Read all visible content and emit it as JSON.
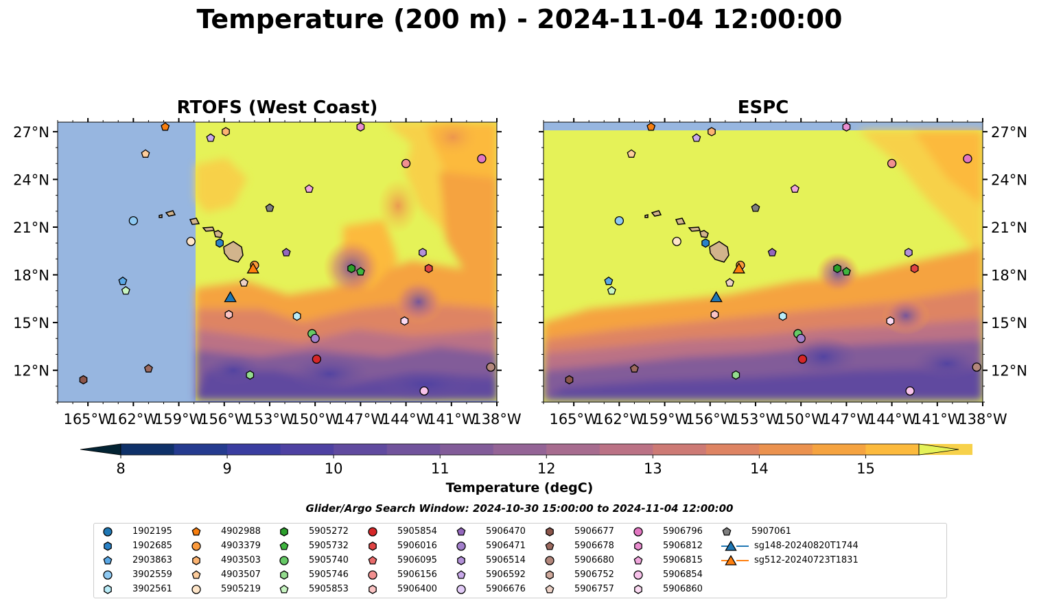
{
  "figure": {
    "title": "Temperature (200 m) - 2024-11-04 12:00:00",
    "left_panel_title": "RTOFS (West Coast)",
    "right_panel_title": "ESPC",
    "search_window": "Glider/Argo Search Window: 2024-10-30 15:00:00 to 2024-11-04 12:00:00"
  },
  "map": {
    "lon_range": [
      -167,
      -138
    ],
    "lat_range": [
      10,
      27.6
    ],
    "lon_ticks": [
      {
        "lon": -165,
        "label": "165°W"
      },
      {
        "lon": -162,
        "label": "162°W"
      },
      {
        "lon": -159,
        "label": "159°W"
      },
      {
        "lon": -156,
        "label": "156°W"
      },
      {
        "lon": -153,
        "label": "153°W"
      },
      {
        "lon": -150,
        "label": "150°W"
      },
      {
        "lon": -147,
        "label": "147°W"
      },
      {
        "lon": -144,
        "label": "144°W"
      },
      {
        "lon": -141,
        "label": "141°W"
      },
      {
        "lon": -138,
        "label": "138°W"
      }
    ],
    "lat_ticks": [
      {
        "lat": 27,
        "label": "27°N"
      },
      {
        "lat": 24,
        "label": "24°N"
      },
      {
        "lat": 21,
        "label": "21°N"
      },
      {
        "lat": 18,
        "label": "18°N"
      },
      {
        "lat": 15,
        "label": "15°N"
      },
      {
        "lat": 12,
        "label": "12°N"
      }
    ],
    "rtofs_domain_west_lon": -157.9,
    "rtofs_domain_south_lat": 10.1,
    "no_data_color": "#97b6e0"
  },
  "colorbar": {
    "label": "Temperature (degC)",
    "min": 7.5,
    "max": 15.5,
    "step": 0.5,
    "ticks": [
      8,
      9,
      10,
      11,
      12,
      13,
      14,
      15
    ],
    "colors": [
      "#032333",
      "#0f3169",
      "#253b8f",
      "#3a3da0",
      "#4e41a2",
      "#604a9f",
      "#71539c",
      "#825c99",
      "#946496",
      "#a76c8f",
      "#bb7285",
      "#cd7a75",
      "#de8463",
      "#eb924f",
      "#f5a340",
      "#fcba3d",
      "#f7d14a",
      "#e5f258"
    ]
  },
  "profiles": [
    {
      "id": "1902195",
      "marker": "circle",
      "color": "#1f77b4",
      "lon": null,
      "lat": null
    },
    {
      "id": "1902685",
      "marker": "hexagon",
      "color": "#2a82c7",
      "lon": -156.3,
      "lat": 20.0
    },
    {
      "id": "2903863",
      "marker": "pentagon",
      "color": "#5aa8e6",
      "lon": -162.7,
      "lat": 17.6
    },
    {
      "id": "3902559",
      "marker": "circle",
      "color": "#8ec9f2",
      "lon": -162.0,
      "lat": 21.4
    },
    {
      "id": "3902561",
      "marker": "hexagon",
      "color": "#b9ecf8",
      "lon": -151.2,
      "lat": 15.4
    },
    {
      "id": "4902988",
      "marker": "pentagon",
      "color": "#f97f0f",
      "lon": -159.9,
      "lat": 27.3
    },
    {
      "id": "4903379",
      "marker": "circle",
      "color": "#fb9a3c",
      "lon": -154.0,
      "lat": 18.6
    },
    {
      "id": "4903503",
      "marker": "hexagon",
      "color": "#fcb472",
      "lon": -155.9,
      "lat": 27.0
    },
    {
      "id": "4903507",
      "marker": "pentagon",
      "color": "#fdcd9c",
      "lon": -161.2,
      "lat": 25.6
    },
    {
      "id": "5905219",
      "marker": "circle",
      "color": "#fee5c8",
      "lon": -158.2,
      "lat": 20.1
    },
    {
      "id": "5905272",
      "marker": "hexagon",
      "color": "#2ca02c",
      "lon": -147.6,
      "lat": 18.4
    },
    {
      "id": "5905732",
      "marker": "pentagon",
      "color": "#3fb53f",
      "lon": -147.0,
      "lat": 18.2
    },
    {
      "id": "5905740",
      "marker": "circle",
      "color": "#66c966",
      "lon": -150.2,
      "lat": 14.3
    },
    {
      "id": "5905746",
      "marker": "hexagon",
      "color": "#94dc8e",
      "lon": -154.3,
      "lat": 11.7
    },
    {
      "id": "5905853",
      "marker": "pentagon",
      "color": "#c8f5c2",
      "lon": -162.5,
      "lat": 17.0
    },
    {
      "id": "5905854",
      "marker": "circle",
      "color": "#d62728",
      "lon": -149.9,
      "lat": 12.7
    },
    {
      "id": "5906016",
      "marker": "hexagon",
      "color": "#e04444",
      "lon": -142.5,
      "lat": 18.4
    },
    {
      "id": "5906095",
      "marker": "pentagon",
      "color": "#e86a6a",
      "lon": null,
      "lat": null
    },
    {
      "id": "5906156",
      "marker": "circle",
      "color": "#f29090",
      "lon": -144.0,
      "lat": 25.0
    },
    {
      "id": "5906400",
      "marker": "hexagon",
      "color": "#fbc4c4",
      "lon": -155.7,
      "lat": 15.5
    },
    {
      "id": "5906470",
      "marker": "pentagon",
      "color": "#9467bd",
      "lon": -151.9,
      "lat": 19.4
    },
    {
      "id": "5906471",
      "marker": "circle",
      "color": "#a27fcb",
      "lon": -150.0,
      "lat": 14.0
    },
    {
      "id": "5906514",
      "marker": "hexagon",
      "color": "#b391d8",
      "lon": -142.9,
      "lat": 19.4
    },
    {
      "id": "5906592",
      "marker": "pentagon",
      "color": "#c9a9ea",
      "lon": -156.9,
      "lat": 26.6
    },
    {
      "id": "5906676",
      "marker": "circle",
      "color": "#e2cbf7",
      "lon": null,
      "lat": null
    },
    {
      "id": "5906677",
      "marker": "hexagon",
      "color": "#8c564b",
      "lon": -165.3,
      "lat": 11.4
    },
    {
      "id": "5906678",
      "marker": "pentagon",
      "color": "#9c6a5f",
      "lon": -161.0,
      "lat": 12.1
    },
    {
      "id": "5906680",
      "marker": "circle",
      "color": "#b3877c",
      "lon": -138.4,
      "lat": 12.2
    },
    {
      "id": "5906752",
      "marker": "hexagon",
      "color": "#d0aa9d",
      "lon": null,
      "lat": null
    },
    {
      "id": "5906757",
      "marker": "pentagon",
      "color": "#ecd1c6",
      "lon": -154.7,
      "lat": 17.5
    },
    {
      "id": "5906796",
      "marker": "circle",
      "color": "#e377c2",
      "lon": -139.0,
      "lat": 25.3
    },
    {
      "id": "5906812",
      "marker": "hexagon",
      "color": "#ea8ed0",
      "lon": -147.0,
      "lat": 27.3
    },
    {
      "id": "5906815",
      "marker": "pentagon",
      "color": "#f0a6dc",
      "lon": -150.4,
      "lat": 23.4
    },
    {
      "id": "5906854",
      "marker": "circle",
      "color": "#f7c2ea",
      "lon": -142.8,
      "lat": 10.7
    },
    {
      "id": "5906860",
      "marker": "hexagon",
      "color": "#fbdaf2",
      "lon": -144.1,
      "lat": 15.1
    },
    {
      "id": "5907061",
      "marker": "pentagon",
      "color": "#7f7f7f",
      "lon": -153.0,
      "lat": 22.2
    },
    {
      "id": "sg148-20240820T1744",
      "marker": "triangle",
      "color": "#1f77b4",
      "lon": -155.6,
      "lat": 16.6
    },
    {
      "id": "sg512-20240723T1831",
      "marker": "triangle",
      "color": "#ff7f0e",
      "lon": -154.1,
      "lat": 18.4
    }
  ]
}
